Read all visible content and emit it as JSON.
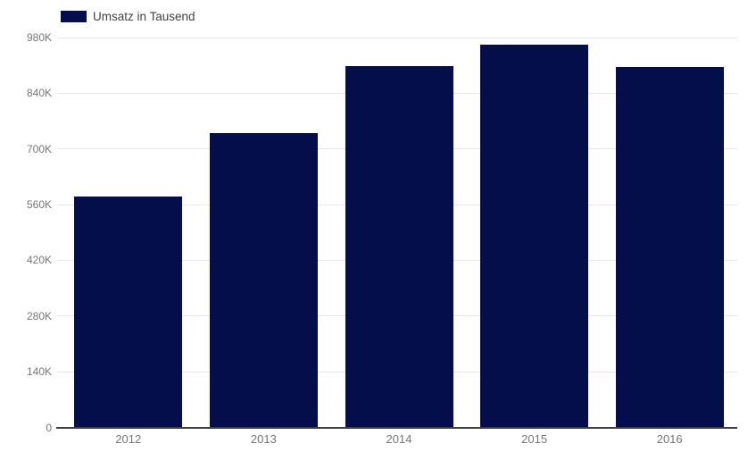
{
  "legend": {
    "label": "Umsatz in Tausend"
  },
  "colors": {
    "background": "#ffffff",
    "bar": "#040e4a",
    "gridline": "#e6e6e6",
    "axis_line": "#3f3f3f",
    "axis_label": "#757575",
    "legend_text": "#424242"
  },
  "chart_data": {
    "type": "bar",
    "title": "",
    "xlabel": "",
    "ylabel": "",
    "categories": [
      "2012",
      "2013",
      "2014",
      "2015",
      "2016"
    ],
    "series": [
      {
        "name": "Umsatz in Tausend",
        "values": [
          580,
          740,
          908,
          963,
          906
        ]
      }
    ],
    "value_suffix": "K",
    "ylim": [
      0,
      980
    ],
    "yticks": [
      0,
      140,
      280,
      420,
      560,
      700,
      840,
      980
    ],
    "ytick_labels": [
      "0",
      "140K",
      "280K",
      "420K",
      "560K",
      "700K",
      "840K",
      "980K"
    ],
    "grid": true,
    "legend_position": "top-left"
  }
}
